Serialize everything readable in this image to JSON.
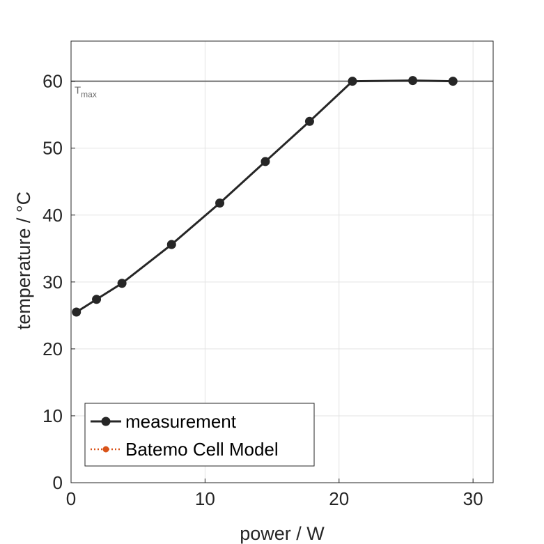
{
  "chart_data": {
    "type": "line",
    "xlabel": "power / W",
    "ylabel": "temperature / °C",
    "xlim": [
      0,
      31.5
    ],
    "ylim": [
      0,
      66
    ],
    "xticks": [
      0,
      10,
      20,
      30
    ],
    "yticks": [
      0,
      10,
      20,
      30,
      40,
      50,
      60
    ],
    "grid": true,
    "legend_position": "bottom-left",
    "series": [
      {
        "name": "measurement",
        "color": "#262626",
        "line_style": "solid",
        "marker": "circle",
        "x": [
          0.4,
          1.9,
          3.8,
          7.5,
          11.1,
          14.5,
          17.8,
          21.0,
          25.5,
          28.5
        ],
        "y": [
          25.5,
          27.4,
          29.8,
          35.6,
          41.8,
          48.0,
          54.0,
          60.0,
          60.1,
          60.0
        ]
      },
      {
        "name": "Batemo Cell Model",
        "color": "#d95319",
        "line_style": "dotted",
        "marker": "circle",
        "x": [],
        "y": []
      }
    ],
    "reference_lines": [
      {
        "orientation": "horizontal",
        "y": 60,
        "color": "#6e6e6e",
        "label_main": "T",
        "label_sub": "max"
      }
    ]
  }
}
